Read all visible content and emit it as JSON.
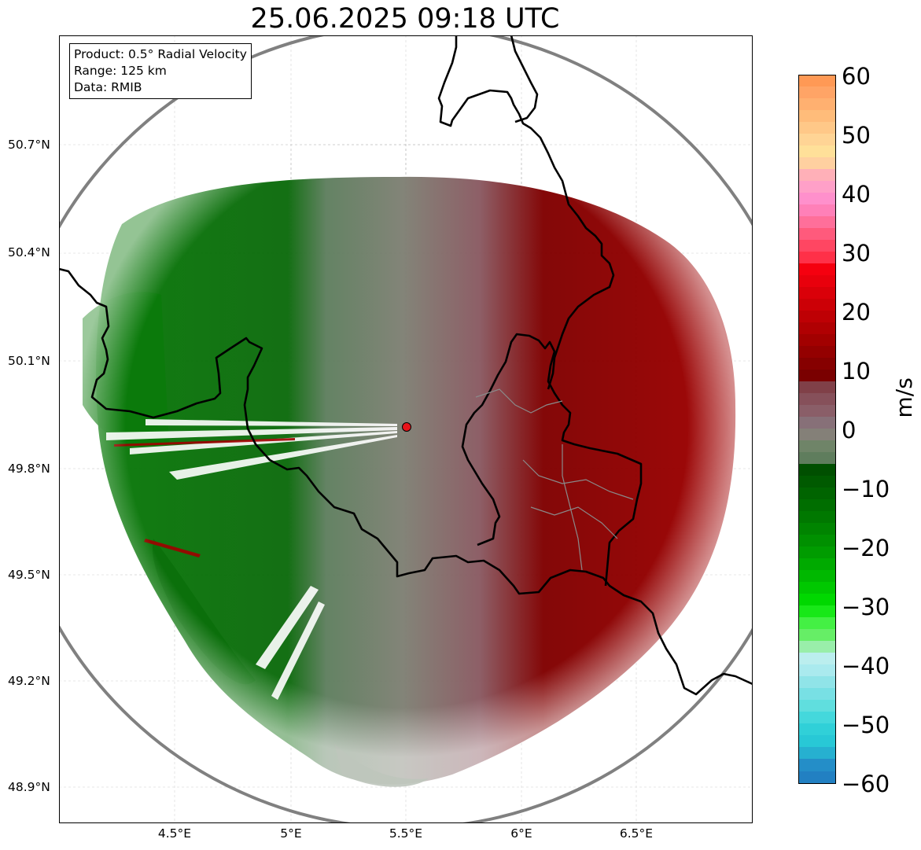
{
  "title": "25.06.2025 09:18 UTC",
  "info": {
    "product": "Product: 0.5° Radial Velocity",
    "range": "Range: 125 km",
    "data": "Data: RMIB"
  },
  "map": {
    "lat_labels": [
      "50.7°N",
      "50.4°N",
      "50.1°N",
      "49.8°N",
      "49.5°N",
      "49.2°N",
      "48.9°N"
    ],
    "lon_labels": [
      "4.5°E",
      "5°E",
      "5.5°E",
      "6°E",
      "6.5°E"
    ],
    "radar_site_color": "#e8141a",
    "range_ring_color": "#808080",
    "border_color": "#000000"
  },
  "colorbar": {
    "label": "m/s",
    "ticks": [
      "60",
      "50",
      "40",
      "30",
      "20",
      "10",
      "0",
      "−10",
      "−20",
      "−30",
      "−40",
      "−50",
      "−60"
    ]
  },
  "velocity_colors": {
    "strong_outbound": "#8b0000",
    "weak_outbound": "#8a5a62",
    "zero": "#7f8074",
    "weak_inbound": "#5f7f5f",
    "strong_inbound": "#006400"
  }
}
